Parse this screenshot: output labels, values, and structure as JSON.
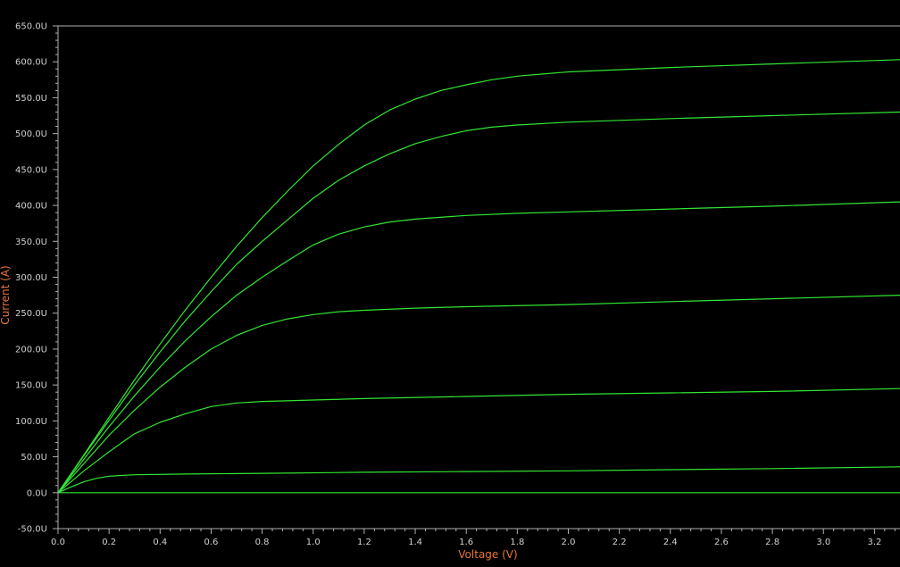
{
  "chart_data": {
    "type": "line",
    "title": "",
    "xlabel": "Voltage (V)",
    "ylabel": "Current (A)",
    "xlim": [
      0,
      3.3
    ],
    "ylim": [
      -50,
      650
    ],
    "x_tick_values": [
      0.0,
      0.2,
      0.4,
      0.6,
      0.8,
      1.0,
      1.2,
      1.4,
      1.6,
      1.8,
      2.0,
      2.2,
      2.4,
      2.6,
      2.8,
      3.0,
      3.2
    ],
    "x_tick_labels": [
      "0.0",
      "0.2",
      "0.4",
      "0.6",
      "0.8",
      "1.0",
      "1.2",
      "1.4",
      "1.6",
      "1.8",
      "2.0",
      "2.2",
      "2.4",
      "2.6",
      "2.8",
      "3.0",
      "3.2"
    ],
    "y_tick_values": [
      -50,
      0,
      50,
      100,
      150,
      200,
      250,
      300,
      350,
      400,
      450,
      500,
      550,
      600,
      650
    ],
    "y_tick_labels": [
      "-50.0U",
      "0.0U",
      "50.0U",
      "100.0U",
      "150.0U",
      "200.0U",
      "250.0U",
      "300.0U",
      "350.0U",
      "400.0U",
      "450.0U",
      "500.0U",
      "550.0U",
      "600.0U",
      "650.0U"
    ],
    "grid": false,
    "legend": "none",
    "colors": {
      "background": "#000000",
      "series": "#33e633",
      "axis": "#b0b0b0",
      "axis_title": "#e8743b",
      "tick_label": "#d0d0d0"
    },
    "series": [
      {
        "x": [
          0,
          3.3
        ],
        "y": [
          0,
          0
        ]
      },
      {
        "x": [
          0,
          0.05,
          0.1,
          0.15,
          0.2,
          0.3,
          0.5,
          0.8,
          1.2,
          1.6,
          2.0,
          2.4,
          2.8,
          3.3
        ],
        "y": [
          0,
          8,
          15,
          20,
          23,
          25,
          26,
          27,
          28.5,
          29.5,
          30.5,
          32,
          33.5,
          36
        ]
      },
      {
        "x": [
          0,
          0.1,
          0.2,
          0.3,
          0.4,
          0.5,
          0.6,
          0.7,
          0.8,
          1.0,
          1.2,
          1.6,
          2.0,
          2.4,
          2.8,
          3.3
        ],
        "y": [
          0,
          30,
          57,
          82,
          98,
          110,
          120,
          125,
          127,
          129,
          131,
          134,
          137,
          139,
          141,
          145
        ]
      },
      {
        "x": [
          0,
          0.1,
          0.2,
          0.3,
          0.4,
          0.5,
          0.6,
          0.7,
          0.8,
          0.9,
          1.0,
          1.1,
          1.2,
          1.4,
          1.6,
          2.0,
          2.4,
          2.8,
          3.3
        ],
        "y": [
          0,
          40,
          80,
          115,
          147,
          175,
          200,
          219,
          233,
          242,
          248,
          252,
          254,
          257,
          259,
          262,
          266,
          270,
          275
        ]
      },
      {
        "x": [
          0,
          0.1,
          0.2,
          0.3,
          0.4,
          0.5,
          0.6,
          0.7,
          0.8,
          0.9,
          1.0,
          1.1,
          1.2,
          1.3,
          1.4,
          1.6,
          1.8,
          2.0,
          2.4,
          2.8,
          3.3
        ],
        "y": [
          0,
          46,
          92,
          135,
          175,
          212,
          245,
          275,
          300,
          323,
          345,
          360,
          370,
          377,
          381,
          386,
          389,
          391,
          395,
          399,
          405
        ]
      },
      {
        "x": [
          0,
          0.1,
          0.2,
          0.3,
          0.4,
          0.5,
          0.6,
          0.7,
          0.8,
          0.9,
          1.0,
          1.1,
          1.2,
          1.3,
          1.4,
          1.5,
          1.6,
          1.7,
          1.8,
          2.0,
          2.4,
          2.8,
          3.3
        ],
        "y": [
          0,
          51,
          101,
          150,
          196,
          240,
          280,
          318,
          350,
          380,
          410,
          435,
          455,
          472,
          486,
          496,
          504,
          509,
          512,
          516,
          521,
          525,
          530
        ]
      },
      {
        "x": [
          0,
          0.1,
          0.2,
          0.3,
          0.4,
          0.5,
          0.6,
          0.7,
          0.8,
          0.9,
          1.0,
          1.1,
          1.2,
          1.3,
          1.4,
          1.5,
          1.6,
          1.7,
          1.8,
          1.9,
          2.0,
          2.4,
          2.8,
          3.3
        ],
        "y": [
          0,
          52,
          105,
          157,
          207,
          255,
          300,
          343,
          383,
          420,
          455,
          485,
          512,
          533,
          548,
          560,
          568,
          575,
          580,
          583,
          586,
          592,
          597,
          603
        ]
      }
    ]
  }
}
